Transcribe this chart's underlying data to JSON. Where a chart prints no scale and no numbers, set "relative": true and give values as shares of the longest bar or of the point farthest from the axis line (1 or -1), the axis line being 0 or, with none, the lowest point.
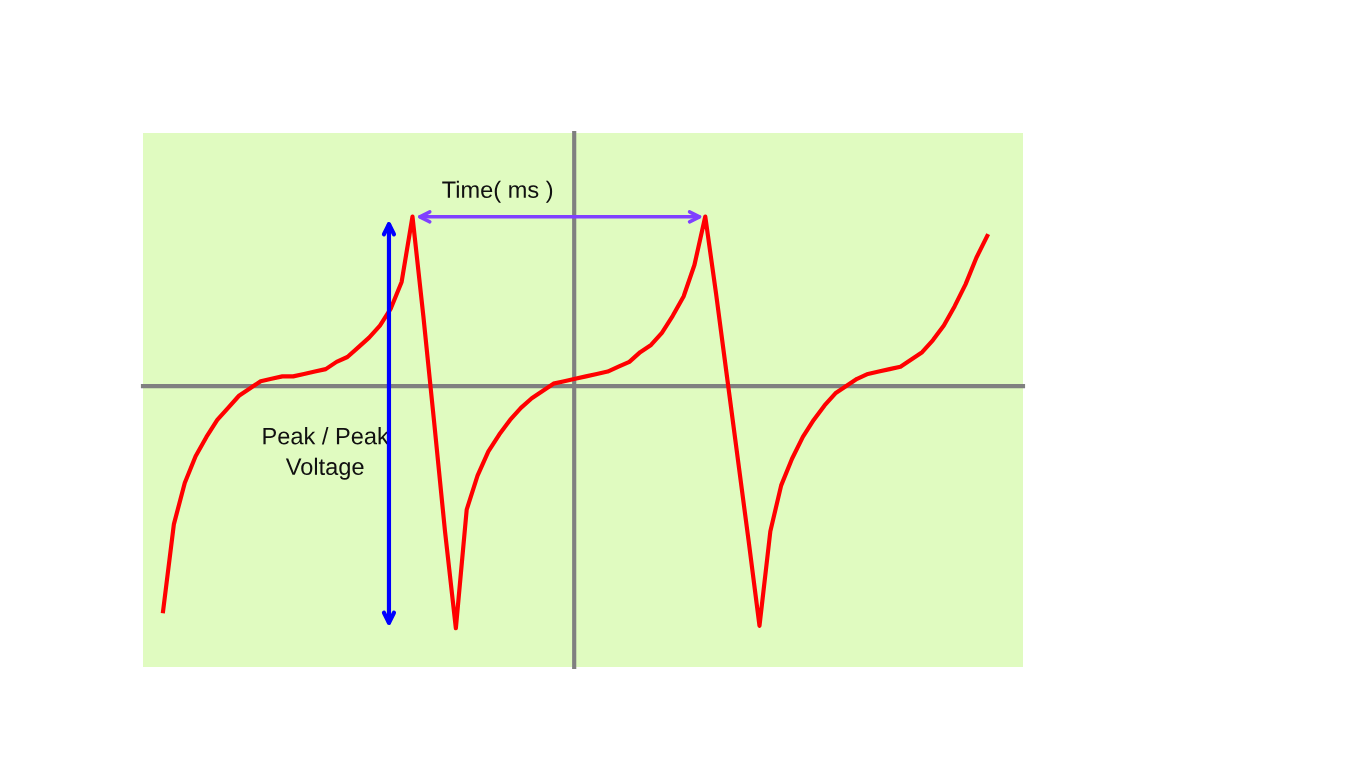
{
  "chart_data": {
    "type": "line",
    "relative": true,
    "tick_labels": false,
    "categories": [
      null,
      null,
      null,
      null,
      null,
      null,
      null,
      null,
      null,
      null,
      null,
      null,
      null,
      null,
      null,
      null,
      null,
      null,
      null,
      null,
      null,
      null,
      null,
      null,
      null,
      null,
      null,
      null,
      null,
      null,
      null,
      null,
      null,
      null,
      null,
      null,
      null,
      null,
      null,
      null,
      null,
      null,
      null,
      null,
      null,
      null,
      null,
      null,
      null,
      null,
      null,
      null,
      null,
      null,
      null,
      null,
      null,
      null,
      null,
      null,
      null,
      null,
      null,
      null,
      null,
      null,
      null,
      null,
      null,
      null,
      null,
      null,
      null,
      null,
      null,
      null,
      null
    ],
    "series": [
      {
        "color": "#ff0000",
        "values": [
          -0.93,
          -0.57,
          -0.4,
          -0.29,
          -0.21,
          -0.14,
          -0.09,
          -0.04,
          -0.01,
          0.02,
          0.03,
          0.04,
          0.04,
          0.05,
          0.06,
          0.07,
          0.1,
          0.12,
          0.16,
          0.2,
          0.25,
          0.32,
          0.43,
          0.7,
          0.29,
          -0.15,
          -0.6,
          -1.0,
          -0.51,
          -0.37,
          -0.27,
          -0.2,
          -0.14,
          -0.09,
          -0.05,
          -0.02,
          0.01,
          0.02,
          0.03,
          0.04,
          0.05,
          0.06,
          0.08,
          0.1,
          0.14,
          0.17,
          0.22,
          0.29,
          0.37,
          0.5,
          0.7,
          0.38,
          0.04,
          -0.3,
          -0.64,
          -0.99,
          -0.6,
          -0.41,
          -0.3,
          -0.21,
          -0.14,
          -0.08,
          -0.03,
          0.0,
          0.03,
          0.05,
          0.06,
          0.07,
          0.08,
          0.11,
          0.14,
          0.19,
          0.25,
          0.33,
          0.42,
          0.53,
          0.62
        ]
      }
    ],
    "annotations": [
      "Time( ms )",
      "Peak / Peak\nVoltage"
    ]
  }
}
